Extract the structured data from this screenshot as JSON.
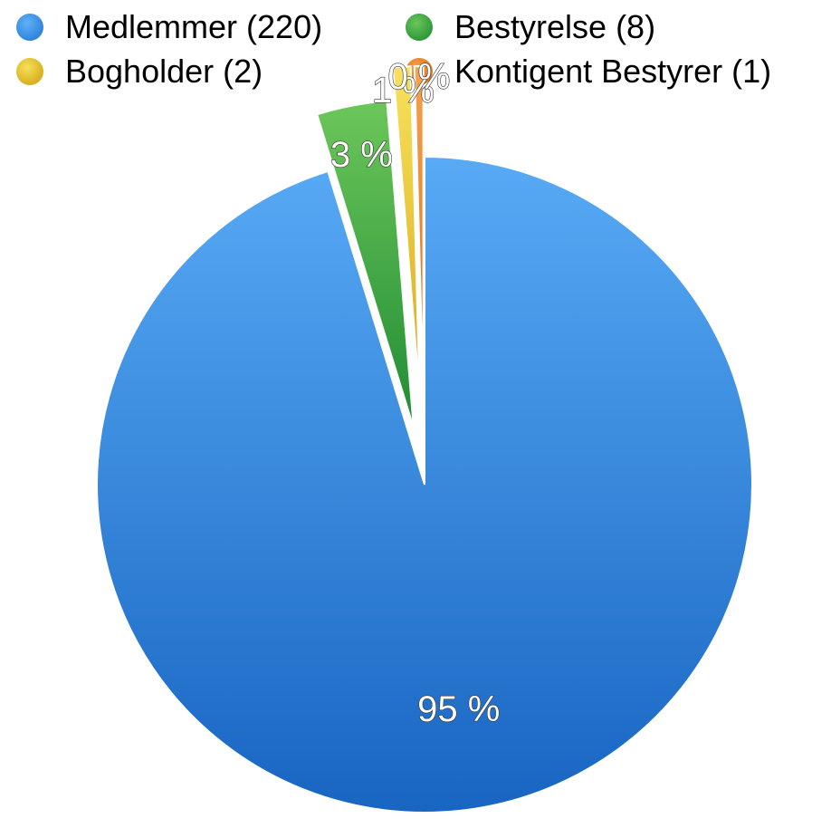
{
  "chart_data": {
    "type": "pie",
    "categories": [
      "Medlemmer",
      "Bestyrelse",
      "Bogholder",
      "Kontigent Bestyrer"
    ],
    "values": [
      220,
      8,
      2,
      1
    ],
    "legend_labels": [
      "Medlemmer (220)",
      "Bestyrelse (8)",
      "Bogholder (2)",
      "Kontigent Bestyrer (1)"
    ],
    "percent_labels": [
      "95 %",
      "3 %",
      "1 %",
      "0 %"
    ],
    "colors": [
      "#2f86dd",
      "#3aa53f",
      "#e9c528",
      "#e8822a"
    ],
    "exploded": true,
    "legend_position": "top"
  }
}
